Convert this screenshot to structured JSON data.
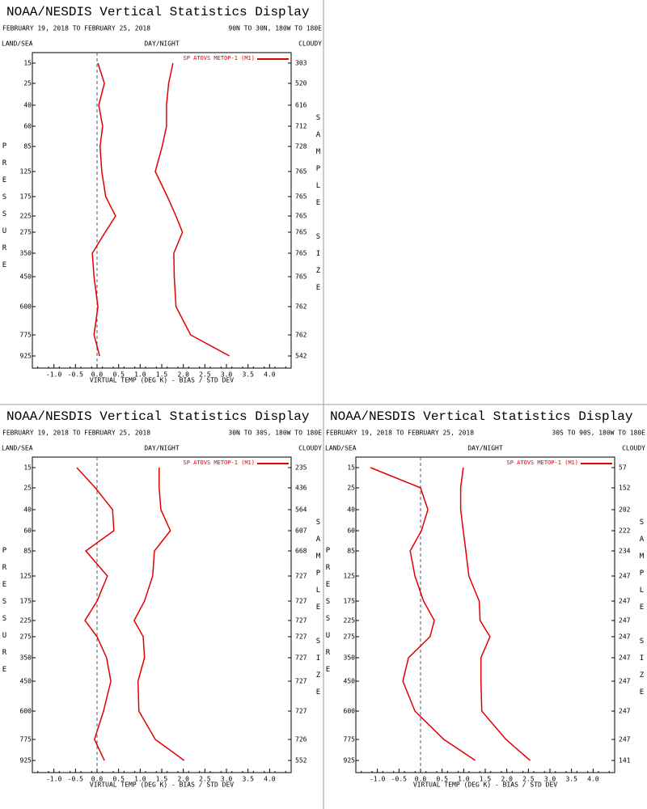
{
  "chart_data": [
    {
      "type": "line",
      "title": "NOAA/NESDIS Vertical Statistics Display",
      "subtitle": "FEBRUARY 19, 2018 TO FEBRUARY 25, 2018",
      "region": "90N TO 30N, 180W TO 180E",
      "labels": {
        "left": "LAND/SEA",
        "center": "DAY/NIGHT",
        "right": "CLOUDY"
      },
      "ylabel": "PRESSURE",
      "y2label": "SAMPLE SIZE",
      "xlabel": "VIRTUAL TEMP (DEG K) - BIAS / STD DEV",
      "categories": [
        15,
        25,
        40,
        60,
        85,
        125,
        175,
        225,
        275,
        350,
        450,
        600,
        775,
        925
      ],
      "counts": [
        303,
        520,
        616,
        712,
        728,
        765,
        765,
        765,
        765,
        765,
        765,
        762,
        762,
        542
      ],
      "series": [
        {
          "name": "SP ATOVS METOP-1 (M1)",
          "color": "#e00000",
          "values": [
            0.02,
            0.17,
            0.04,
            0.13,
            0.07,
            0.11,
            0.2,
            0.43,
            0.19,
            -0.11,
            -0.07,
            0.02,
            -0.07,
            0.06
          ],
          "std_dev": [
            1.76,
            1.66,
            1.61,
            1.61,
            1.51,
            1.35,
            1.63,
            1.83,
            1.98,
            1.78,
            1.79,
            1.83,
            2.17,
            3.07
          ]
        }
      ],
      "xlim": [
        -1.5,
        4.5
      ],
      "xticks": [
        {
          "value": -1,
          "label": "-1.0"
        },
        -0.5,
        {
          "value": 0,
          "label": "0.0"
        },
        0.5,
        {
          "value": 1,
          "label": "1.0"
        },
        1.5,
        {
          "value": 2,
          "label": "2.0"
        },
        2.5,
        {
          "value": 3,
          "label": "3.0"
        },
        3.5,
        {
          "value": 4,
          "label": "4.0"
        }
      ]
    },
    {
      "type": "line",
      "title": "NOAA/NESDIS Vertical Statistics Display",
      "subtitle": "FEBRUARY 19, 2018 TO FEBRUARY 25, 2018",
      "region": "30N TO 30S, 180W TO 180E",
      "labels": {
        "left": "LAND/SEA",
        "center": "DAY/NIGHT",
        "right": "CLOUDY"
      },
      "ylabel": "PRESSURE",
      "y2label": "SAMPLE SIZE",
      "xlabel": "VIRTUAL TEMP (DEG K) - BIAS / STD DEV",
      "categories": [
        15,
        25,
        40,
        60,
        85,
        125,
        175,
        225,
        275,
        350,
        450,
        600,
        775,
        925
      ],
      "counts": [
        235,
        436,
        564,
        607,
        668,
        727,
        727,
        727,
        727,
        727,
        727,
        727,
        726,
        552
      ],
      "series": [
        {
          "name": "SP ATOVS METOP-1 (M1)",
          "color": "#e00000",
          "values": [
            -0.47,
            -0.04,
            0.36,
            0.39,
            -0.26,
            0.24,
            0,
            -0.28,
            0,
            0.22,
            0.32,
            0.15,
            -0.06,
            0.17
          ],
          "std_dev": [
            1.44,
            1.44,
            1.48,
            1.7,
            1.33,
            1.29,
            1.1,
            0.86,
            1.07,
            1.1,
            0.95,
            0.97,
            1.35,
            2.02
          ]
        }
      ],
      "xlim": [
        -1.5,
        4.5
      ],
      "xticks": [
        {
          "value": -1,
          "label": "-1.0"
        },
        -0.5,
        {
          "value": 0,
          "label": "0.0"
        },
        0.5,
        {
          "value": 1,
          "label": "1.0"
        },
        1.5,
        {
          "value": 2,
          "label": "2.0"
        },
        2.5,
        {
          "value": 3,
          "label": "3.0"
        },
        3.5,
        {
          "value": 4,
          "label": "4.0"
        }
      ]
    },
    {
      "type": "line",
      "title": "NOAA/NESDIS Vertical Statistics Display",
      "subtitle": "FEBRUARY 19, 2018 TO FEBRUARY 25, 2018",
      "region": "30S TO 90S, 180W TO 180E",
      "labels": {
        "left": "LAND/SEA",
        "center": "DAY/NIGHT",
        "right": "CLOUDY"
      },
      "ylabel": "PRESSURE",
      "y2label": "SAMPLE SIZE",
      "xlabel": "VIRTUAL TEMP (DEG K) - BIAS / STD DEV",
      "categories": [
        15,
        25,
        40,
        60,
        85,
        125,
        175,
        225,
        275,
        350,
        450,
        600,
        775,
        925
      ],
      "counts": [
        57,
        152,
        202,
        222,
        234,
        247,
        247,
        247,
        247,
        247,
        247,
        247,
        247,
        141
      ],
      "series": [
        {
          "name": "SP ATOVS METOP-1 (M1)",
          "color": "#e00000",
          "values": [
            -1.16,
            0,
            0.17,
            0.02,
            -0.24,
            -0.13,
            0.07,
            0.32,
            0.22,
            -0.28,
            -0.41,
            -0.13,
            0.54,
            1.27
          ],
          "std_dev": [
            0.99,
            0.93,
            0.93,
            0.99,
            1.05,
            1.12,
            1.36,
            1.38,
            1.61,
            1.4,
            1.4,
            1.42,
            1.98,
            2.54
          ]
        }
      ],
      "xlim": [
        -1.5,
        4.5
      ],
      "xticks": [
        {
          "value": -1,
          "label": "-1.0"
        },
        -0.5,
        {
          "value": 0,
          "label": "0.0"
        },
        0.5,
        {
          "value": 1,
          "label": "1.0"
        },
        1.5,
        {
          "value": 2,
          "label": "2.0"
        },
        2.5,
        {
          "value": 3,
          "label": "3.0"
        },
        3.5,
        {
          "value": 4,
          "label": "4.0"
        }
      ]
    }
  ]
}
